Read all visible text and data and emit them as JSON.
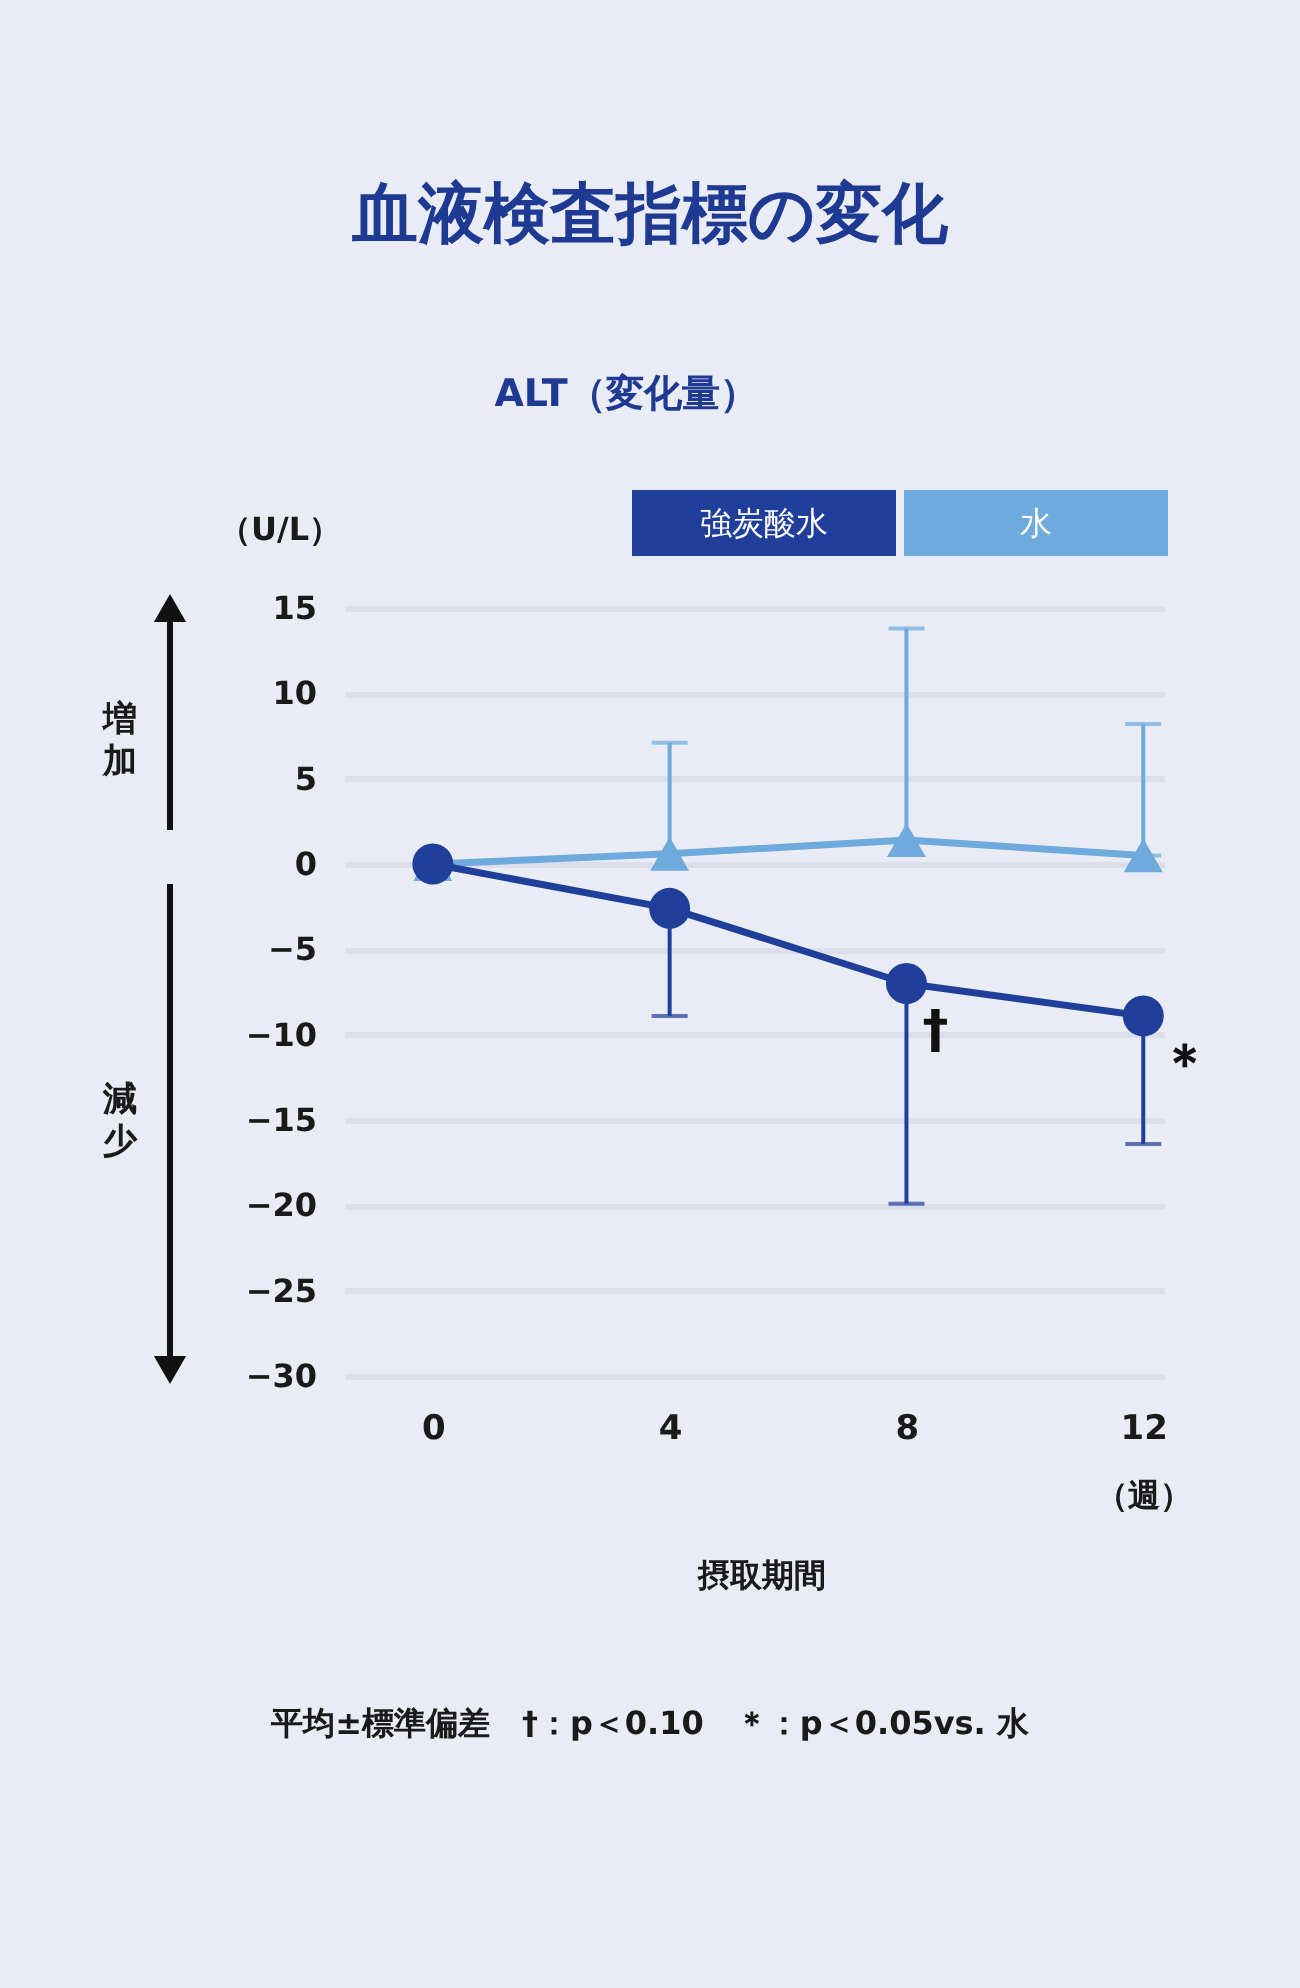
{
  "chart_data": {
    "type": "line",
    "title": "血液検査指標の変化",
    "subtitle": "ALT（変化量）",
    "ylabel": "（U/L）",
    "xlabel": "摂取期間",
    "x": [
      0,
      4,
      8,
      12
    ],
    "xlim": [
      -1.5,
      12.35
    ],
    "xticks": [
      0,
      4,
      8,
      12
    ],
    "ylim": [
      -30,
      15
    ],
    "yticks": [
      -30,
      -25,
      -20,
      -15,
      -10,
      -5,
      0,
      5,
      10,
      15
    ],
    "grid": "y",
    "legend": "top right",
    "line_style": "solid",
    "series": [
      {
        "name": "強炭酸水",
        "color": "#203f9a",
        "marker": "circle",
        "values": [
          0,
          -2.6,
          -7.0,
          -8.9
        ],
        "errors": [
          null,
          [
            -8.9,
            -2.6
          ],
          [
            -19.9,
            -7.0
          ],
          [
            -16.4,
            -8.9
          ]
        ]
      },
      {
        "name": "水",
        "color": "#6eaadc",
        "marker": "triangle",
        "values": [
          0,
          0.6,
          1.4,
          0.5
        ],
        "errors": [
          null,
          [
            0.6,
            7.1
          ],
          [
            1.4,
            13.8
          ],
          [
            0.5,
            8.2
          ]
        ]
      }
    ],
    "annotations": [
      {
        "text": "†",
        "x": 8,
        "y": -7.0
      },
      {
        "text": "＊",
        "x": 12,
        "y": -8.9
      },
      "（週）",
      "増加",
      "減少",
      "平均±標準偏差　†：p＜0.10　＊：p＜0.05vs. 水"
    ]
  }
}
